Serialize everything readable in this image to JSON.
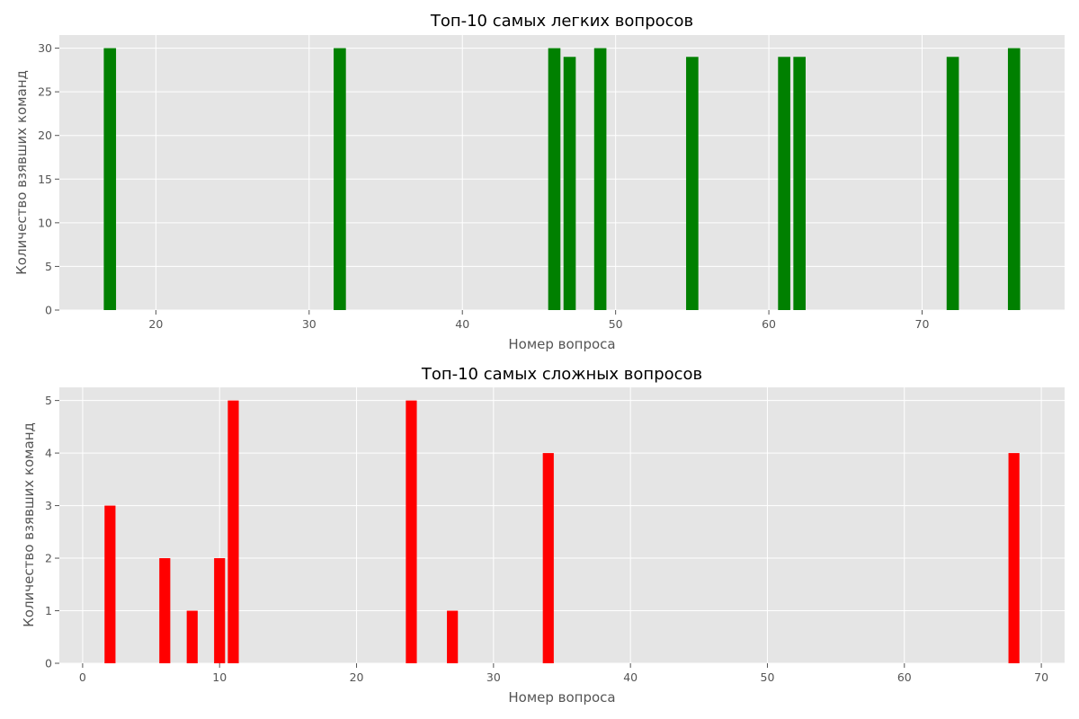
{
  "chart_data": [
    {
      "type": "bar",
      "title": "Топ-10 самых легких вопросов",
      "xlabel": "Номер вопроса",
      "ylabel": "Количество взявших команд",
      "x": [
        17,
        32,
        46,
        47,
        49,
        55,
        61,
        62,
        72,
        76
      ],
      "values": [
        30,
        30,
        30,
        29,
        30,
        29,
        29,
        29,
        29,
        30
      ],
      "xlim": [
        13.7,
        79.3
      ],
      "ylim": [
        0,
        31.5
      ],
      "xticks": [
        20,
        30,
        40,
        50,
        60,
        70
      ],
      "yticks": [
        0,
        5,
        10,
        15,
        20,
        25,
        30
      ],
      "color": "#008000",
      "grid": true
    },
    {
      "type": "bar",
      "title": "Топ-10 самых сложных вопросов",
      "xlabel": "Номер вопроса",
      "ylabel": "Количество взявших команд",
      "x": [
        2,
        6,
        8,
        10,
        11,
        24,
        27,
        34,
        68
      ],
      "values": [
        3,
        2,
        1,
        2,
        5,
        5,
        1,
        4,
        4
      ],
      "xlim": [
        -1.7,
        71.7
      ],
      "ylim": [
        0,
        5.25
      ],
      "xticks": [
        0,
        10,
        20,
        30,
        40,
        50,
        60,
        70
      ],
      "yticks": [
        0,
        1,
        2,
        3,
        4,
        5
      ],
      "color": "#ff0000",
      "grid": true
    }
  ],
  "style": {
    "plot_background": "#e5e5e5",
    "grid_color": "#ffffff"
  }
}
